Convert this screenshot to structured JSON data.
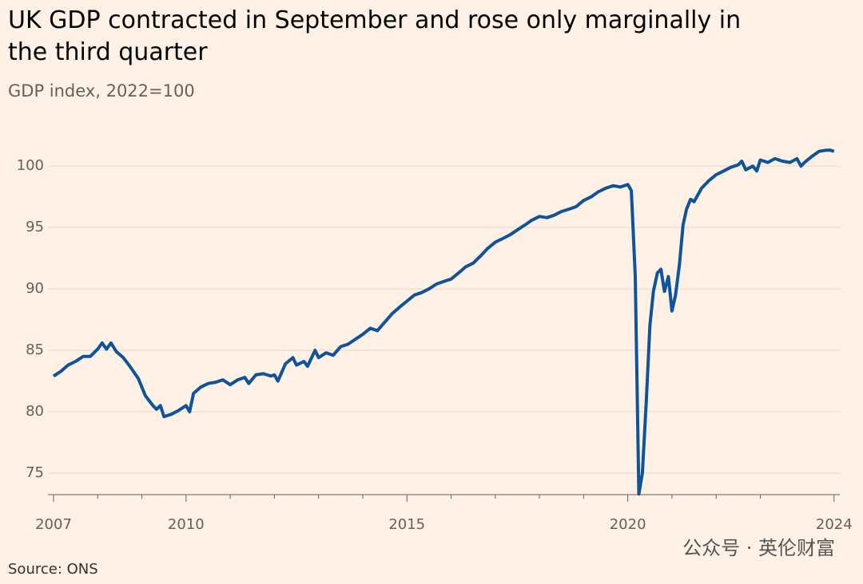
{
  "chart_data": {
    "type": "line",
    "title": "UK GDP contracted in September and rose only marginally in the third quarter",
    "subtitle": "GDP index, 2022=100",
    "source": "Source: ONS",
    "watermark": "公众号 · 英伦财富",
    "x": [
      2007.0,
      2007.17,
      2007.33,
      2007.5,
      2007.67,
      2007.83,
      2008.0,
      2008.1,
      2008.2,
      2008.3,
      2008.42,
      2008.58,
      2008.75,
      2008.92,
      2009.08,
      2009.25,
      2009.33,
      2009.42,
      2009.5,
      2009.67,
      2009.83,
      2010.0,
      2010.08,
      2010.17,
      2010.33,
      2010.5,
      2010.67,
      2010.83,
      2011.0,
      2011.17,
      2011.33,
      2011.42,
      2011.58,
      2011.75,
      2011.92,
      2012.0,
      2012.08,
      2012.25,
      2012.42,
      2012.5,
      2012.67,
      2012.75,
      2012.92,
      2013.0,
      2013.17,
      2013.33,
      2013.5,
      2013.67,
      2013.83,
      2014.0,
      2014.17,
      2014.33,
      2014.5,
      2014.67,
      2014.83,
      2015.0,
      2015.17,
      2015.33,
      2015.5,
      2015.67,
      2015.83,
      2016.0,
      2016.17,
      2016.33,
      2016.5,
      2016.67,
      2016.83,
      2017.0,
      2017.17,
      2017.33,
      2017.5,
      2017.67,
      2017.83,
      2018.0,
      2018.17,
      2018.33,
      2018.5,
      2018.67,
      2018.83,
      2019.0,
      2019.17,
      2019.33,
      2019.5,
      2019.67,
      2019.83,
      2020.0,
      2020.08,
      2020.17,
      2020.25,
      2020.33,
      2020.42,
      2020.5,
      2020.58,
      2020.67,
      2020.75,
      2020.83,
      2020.92,
      2021.0,
      2021.08,
      2021.17,
      2021.25,
      2021.33,
      2021.42,
      2021.5,
      2021.67,
      2021.83,
      2022.0,
      2022.17,
      2022.33,
      2022.5,
      2022.58,
      2022.67,
      2022.83,
      2022.92,
      2023.0,
      2023.17,
      2023.33,
      2023.5,
      2023.67,
      2023.83,
      2023.92,
      2024.0,
      2024.17,
      2024.33,
      2024.5,
      2024.58,
      2024.67
    ],
    "series": [
      {
        "name": "GDP index",
        "color": "#0f5499",
        "values": [
          82.9,
          83.3,
          83.8,
          84.1,
          84.5,
          84.5,
          85.1,
          85.6,
          85.1,
          85.6,
          84.9,
          84.4,
          83.6,
          82.7,
          81.3,
          80.5,
          80.2,
          80.5,
          79.6,
          79.8,
          80.1,
          80.5,
          80.0,
          81.5,
          82.0,
          82.3,
          82.4,
          82.6,
          82.2,
          82.6,
          82.8,
          82.3,
          83.0,
          83.1,
          82.9,
          83.0,
          82.5,
          83.9,
          84.4,
          83.8,
          84.1,
          83.7,
          85.0,
          84.4,
          84.8,
          84.6,
          85.3,
          85.5,
          85.9,
          86.3,
          86.8,
          86.6,
          87.3,
          88.0,
          88.5,
          89.0,
          89.5,
          89.7,
          90.0,
          90.4,
          90.6,
          90.8,
          91.3,
          91.8,
          92.1,
          92.7,
          93.3,
          93.8,
          94.1,
          94.4,
          94.8,
          95.2,
          95.6,
          95.9,
          95.8,
          96.0,
          96.3,
          96.5,
          96.7,
          97.2,
          97.5,
          97.9,
          98.2,
          98.4,
          98.3,
          98.5,
          98.0,
          91.0,
          73.3,
          75.0,
          81.0,
          87.0,
          89.8,
          91.3,
          91.6,
          89.8,
          91.0,
          88.2,
          89.5,
          92.0,
          95.2,
          96.5,
          97.3,
          97.1,
          98.2,
          98.8,
          99.3,
          99.6,
          99.9,
          100.1,
          100.4,
          99.7,
          100.0,
          99.6,
          100.5,
          100.3,
          100.6,
          100.4,
          100.3,
          100.6,
          100.0,
          100.3,
          100.8,
          101.2,
          101.3,
          101.3,
          101.2
        ]
      }
    ],
    "xlim": [
      2007,
      2024.8
    ],
    "xticks": [
      2007,
      2010,
      2015,
      2020,
      {
        "value": 2024.67,
        "label": "2024"
      }
    ],
    "xminorticks": [
      2008,
      2009,
      2011,
      2012,
      2013,
      2014,
      2016,
      2017,
      2018,
      2019,
      2021,
      2022,
      2023
    ],
    "ylim": [
      73.25,
      103
    ],
    "yticks": [
      75,
      80,
      85,
      90,
      95,
      100
    ],
    "grid": true
  }
}
